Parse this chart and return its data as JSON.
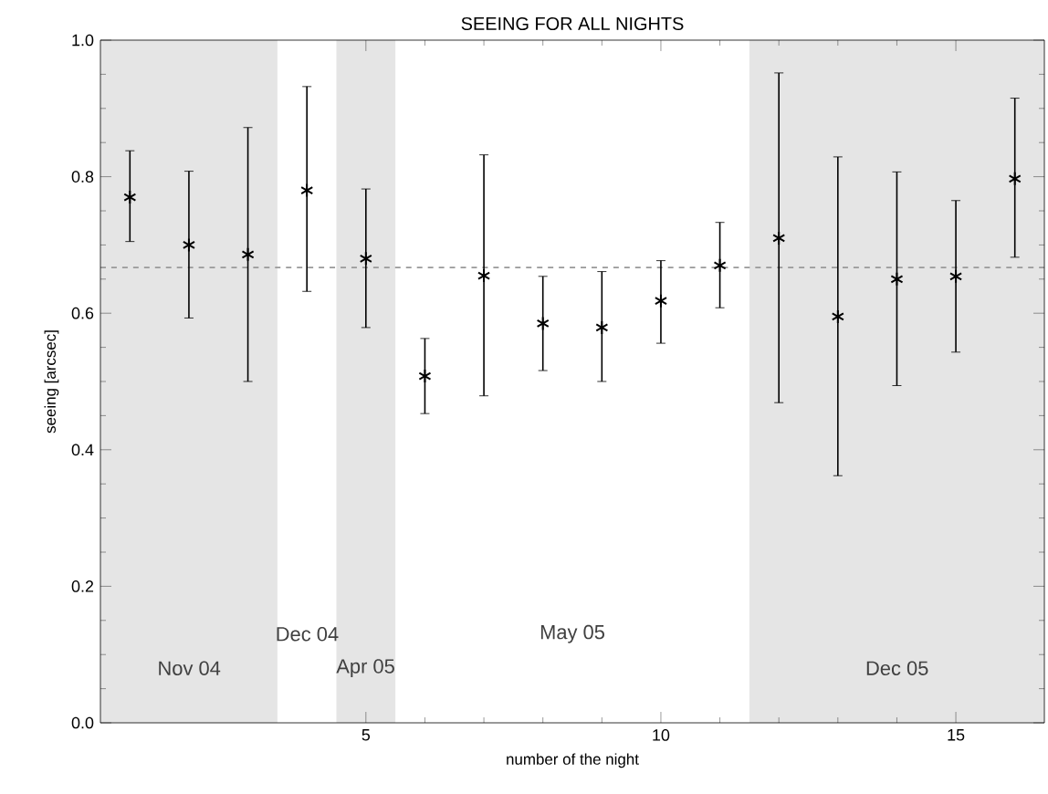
{
  "chart_data": {
    "type": "scatter",
    "title": "SEEING FOR ALL NIGHTS",
    "xlabel": "number of the night",
    "ylabel": "seeing [arcsec]",
    "x": [
      1,
      2,
      3,
      4,
      5,
      6,
      7,
      8,
      9,
      10,
      11,
      12,
      13,
      14,
      15,
      16
    ],
    "series": [
      {
        "color": "#000000",
        "values": [
          0.77,
          0.7,
          0.686,
          0.78,
          0.68,
          0.508,
          0.655,
          0.585,
          0.579,
          0.618,
          0.67,
          0.71,
          0.595,
          0.65,
          0.654,
          0.797
        ],
        "errors": [
          [
            0.705,
            0.838
          ],
          [
            0.593,
            0.808
          ],
          [
            0.5,
            0.872
          ],
          [
            0.632,
            0.932
          ],
          [
            0.579,
            0.782
          ],
          [
            0.453,
            0.563
          ],
          [
            0.479,
            0.832
          ],
          [
            0.516,
            0.654
          ],
          [
            0.5,
            0.661
          ],
          [
            0.556,
            0.677
          ],
          [
            0.608,
            0.733
          ],
          [
            0.469,
            0.952
          ],
          [
            0.362,
            0.829
          ],
          [
            0.494,
            0.807
          ],
          [
            0.543,
            0.765
          ],
          [
            0.682,
            0.915
          ]
        ]
      }
    ],
    "marker": "cross",
    "xlim": [
      0.5,
      16.5
    ],
    "ylim": [
      0,
      1
    ],
    "xticks": [
      5,
      10,
      15
    ],
    "yticks": [
      {
        "value": 0,
        "label": "0.0"
      },
      {
        "value": 0.2,
        "label": "0.2"
      },
      {
        "value": 0.4,
        "label": "0.4"
      },
      {
        "value": 0.6,
        "label": "0.6"
      },
      {
        "value": 0.8,
        "label": "0.8"
      },
      {
        "value": 1,
        "label": "1.0"
      }
    ],
    "ref_lines": [
      {
        "axis": "y",
        "value": 0.667,
        "color": "#999999",
        "line_style": "dashed"
      }
    ],
    "bands": [
      {
        "axis": "x",
        "from": 0.5,
        "to": 3.5,
        "color": "#e5e5e5"
      },
      {
        "axis": "x",
        "from": 4.5,
        "to": 5.5,
        "color": "#e5e5e5"
      },
      {
        "axis": "x",
        "from": 11.5,
        "to": 16.5,
        "color": "#e5e5e5"
      }
    ],
    "annotations": [
      "Nov 04",
      "Dec 04",
      "Apr 05",
      "May 05",
      "Dec 05"
    ]
  }
}
